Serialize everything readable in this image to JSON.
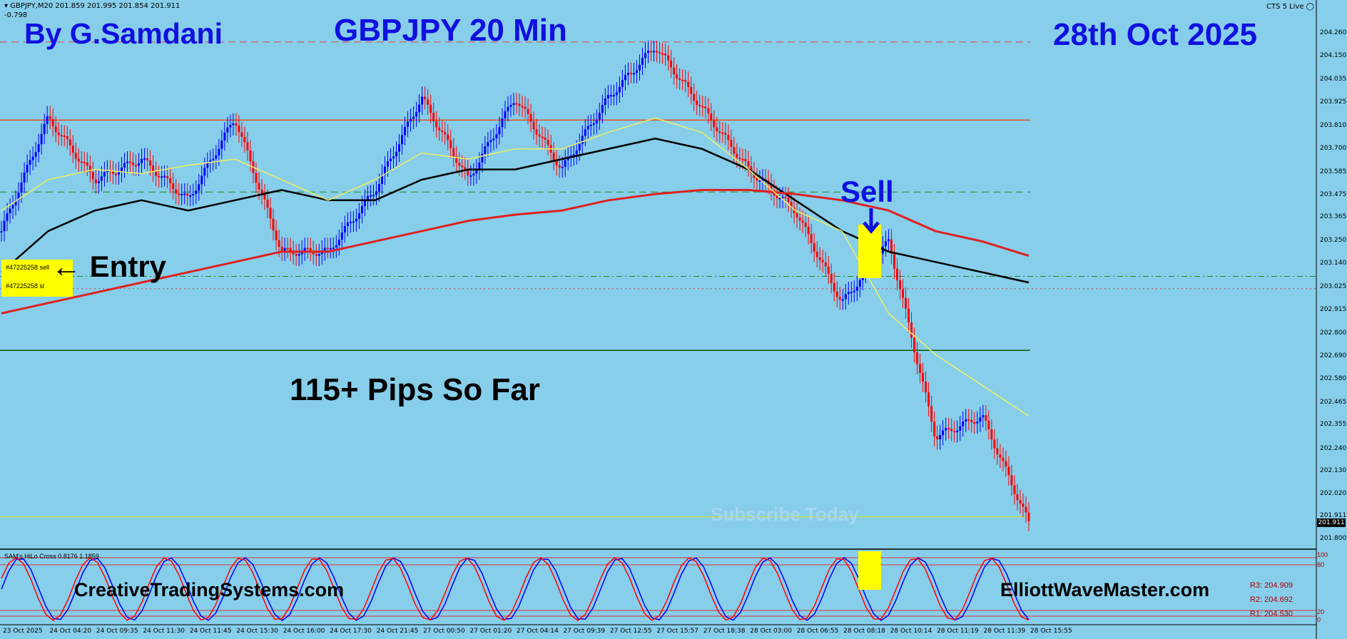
{
  "header": {
    "symbol_info": "GBPJPY,M20  201.859 201.995 201.854 201.911",
    "sub_value": "-0.798",
    "broker": "CTS 5 Live"
  },
  "overlay_text": {
    "author": "By G.Samdani",
    "chart_title": "GBPJPY 20 Min",
    "date": "28th Oct 2025",
    "sell_label": "Sell",
    "entry_label": "← Entry",
    "pips_label": "115+ Pips So Far",
    "subscribe": "Subscribe Today",
    "website_left": "CreativeTradingSystems.com",
    "website_right": "ElliottWaveMaster.com",
    "order_1": "#47225258 sell",
    "order_2": "#47225258 sl"
  },
  "indicator": {
    "name": "SAM's HiLo Cross 0.8176 1.1859",
    "r3": "R3: 204.909",
    "r2": "R2: 204.692",
    "r1": "R1: 204.530",
    "levels": [
      "100",
      "80",
      "20",
      "0"
    ]
  },
  "current_price": "201.911",
  "price_axis": [
    "204.260",
    "204.150",
    "204.035",
    "203.925",
    "203.810",
    "203.700",
    "203.585",
    "203.475",
    "203.365",
    "203.250",
    "203.140",
    "203.025",
    "202.915",
    "202.800",
    "202.690",
    "202.580",
    "202.465",
    "202.355",
    "202.240",
    "202.130",
    "202.020",
    "201.911",
    "201.800"
  ],
  "time_axis": [
    "23 Oct 2025",
    "24 Oct 04:20",
    "24 Oct 09:35",
    "24 Oct 11:30",
    "24 Oct 11:45",
    "24 Oct 15:30",
    "24 Oct 16:00",
    "24 Oct 17:30",
    "24 Oct 21:45",
    "27 Oct 00:50",
    "27 Oct 01:20",
    "27 Oct 04:14",
    "27 Oct 09:39",
    "27 Oct 12:55",
    "27 Oct 15:57",
    "27 Oct 18:38",
    "28 Oct 03:00",
    "28 Oct 06:55",
    "28 Oct 08:18",
    "28 Oct 10:14",
    "28 Oct 11:19",
    "28 Oct 11:39",
    "28 Oct 15:55"
  ],
  "colors": {
    "background": "#87ceeb",
    "bull_bar": "#0000ff",
    "bear_bar": "#ff0000",
    "title_blue": "#1010e0",
    "highlight": "#ffff00"
  },
  "chart_data": {
    "type": "line",
    "title": "GBPJPY 20 Min",
    "ylim": [
      201.76,
      204.32
    ],
    "y_ticks": [
      204.26,
      204.15,
      204.035,
      203.925,
      203.81,
      203.7,
      203.585,
      203.475,
      203.365,
      203.25,
      203.14,
      203.025,
      202.915,
      202.8,
      202.69,
      202.58,
      202.465,
      202.355,
      202.24,
      202.13,
      202.02,
      201.911,
      201.8
    ],
    "x": [
      "23 Oct 2025",
      "24 Oct 04:20",
      "24 Oct 09:35",
      "24 Oct 11:30",
      "24 Oct 11:45",
      "24 Oct 15:30",
      "24 Oct 16:00",
      "24 Oct 17:30",
      "24 Oct 21:45",
      "27 Oct 00:50",
      "27 Oct 01:20",
      "27 Oct 04:14",
      "27 Oct 09:39",
      "27 Oct 12:55",
      "27 Oct 15:57",
      "27 Oct 18:38",
      "28 Oct 03:00",
      "28 Oct 06:55",
      "28 Oct 08:18",
      "28 Oct 10:14",
      "28 Oct 11:19",
      "28 Oct 11:39",
      "28 Oct 15:55"
    ],
    "price_path": [
      203.3,
      203.85,
      203.55,
      203.65,
      203.45,
      203.85,
      203.2,
      203.2,
      203.5,
      203.95,
      203.55,
      203.95,
      203.6,
      203.95,
      204.2,
      203.9,
      203.6,
      203.4,
      202.95,
      203.25,
      202.3,
      202.4,
      201.88
    ],
    "series": [
      {
        "values": [
          203.1,
          203.3,
          203.4,
          203.45,
          203.4,
          203.45,
          203.5,
          203.45,
          203.45,
          203.55,
          203.6,
          203.6,
          203.65,
          203.7,
          203.75,
          203.7,
          203.6,
          203.45,
          203.3,
          203.2,
          203.15,
          203.1,
          203.05
        ]
      },
      {
        "values": [
          202.9,
          202.95,
          203.0,
          203.05,
          203.1,
          203.15,
          203.2,
          203.2,
          203.25,
          203.3,
          203.35,
          203.38,
          203.4,
          203.45,
          203.48,
          203.5,
          203.5,
          203.48,
          203.45,
          203.4,
          203.3,
          203.25,
          203.18
        ]
      },
      {
        "values": [
          203.4,
          203.55,
          203.6,
          203.58,
          203.62,
          203.65,
          203.55,
          203.45,
          203.55,
          203.68,
          203.65,
          203.7,
          203.7,
          203.78,
          203.85,
          203.78,
          203.6,
          203.4,
          203.3,
          202.9,
          202.7,
          202.55,
          202.4
        ]
      }
    ],
    "horizontal_levels": [
      204.22,
      203.84,
      203.49,
      203.08,
      203.02,
      202.72,
      201.91
    ]
  }
}
